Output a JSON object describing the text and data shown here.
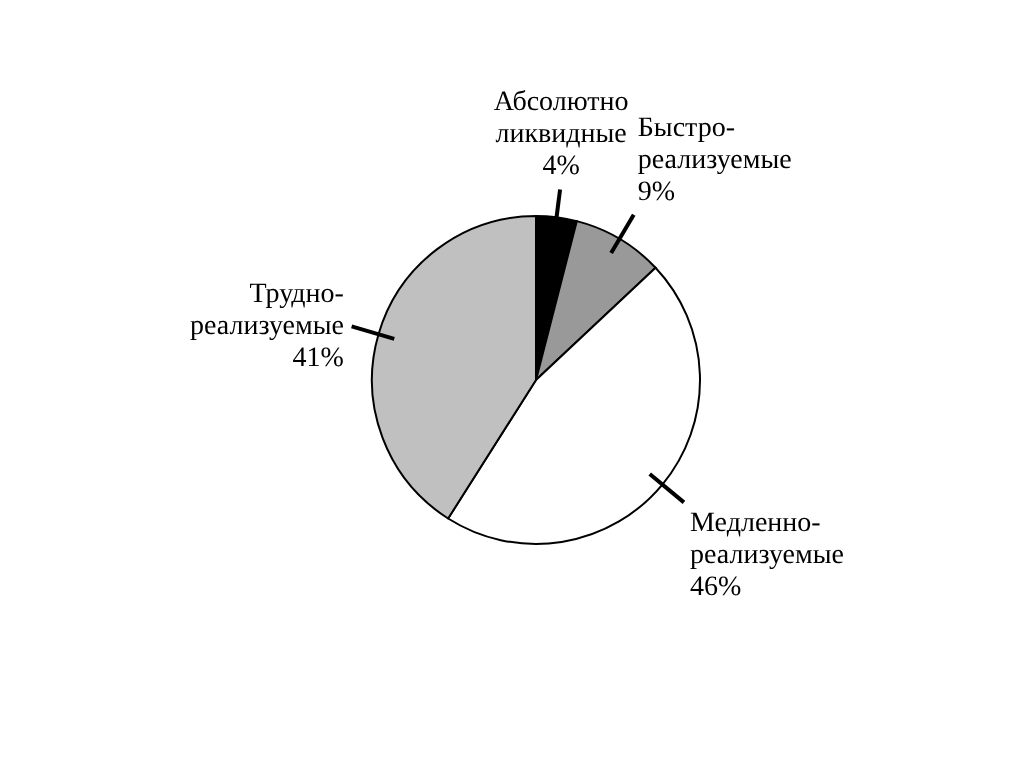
{
  "chart_data": {
    "type": "pie",
    "categories": [
      "Абсолютно ликвидные",
      "Быстро-реализуемые",
      "Медленно-реализуемые",
      "Трудно-реализуемые"
    ],
    "values": [
      4,
      9,
      46,
      41
    ],
    "colors": [
      "#000000",
      "#999999",
      "#ffffff",
      "#c0c0c0"
    ],
    "value_labels": [
      "4%",
      "9%",
      "46%",
      "41%"
    ]
  }
}
